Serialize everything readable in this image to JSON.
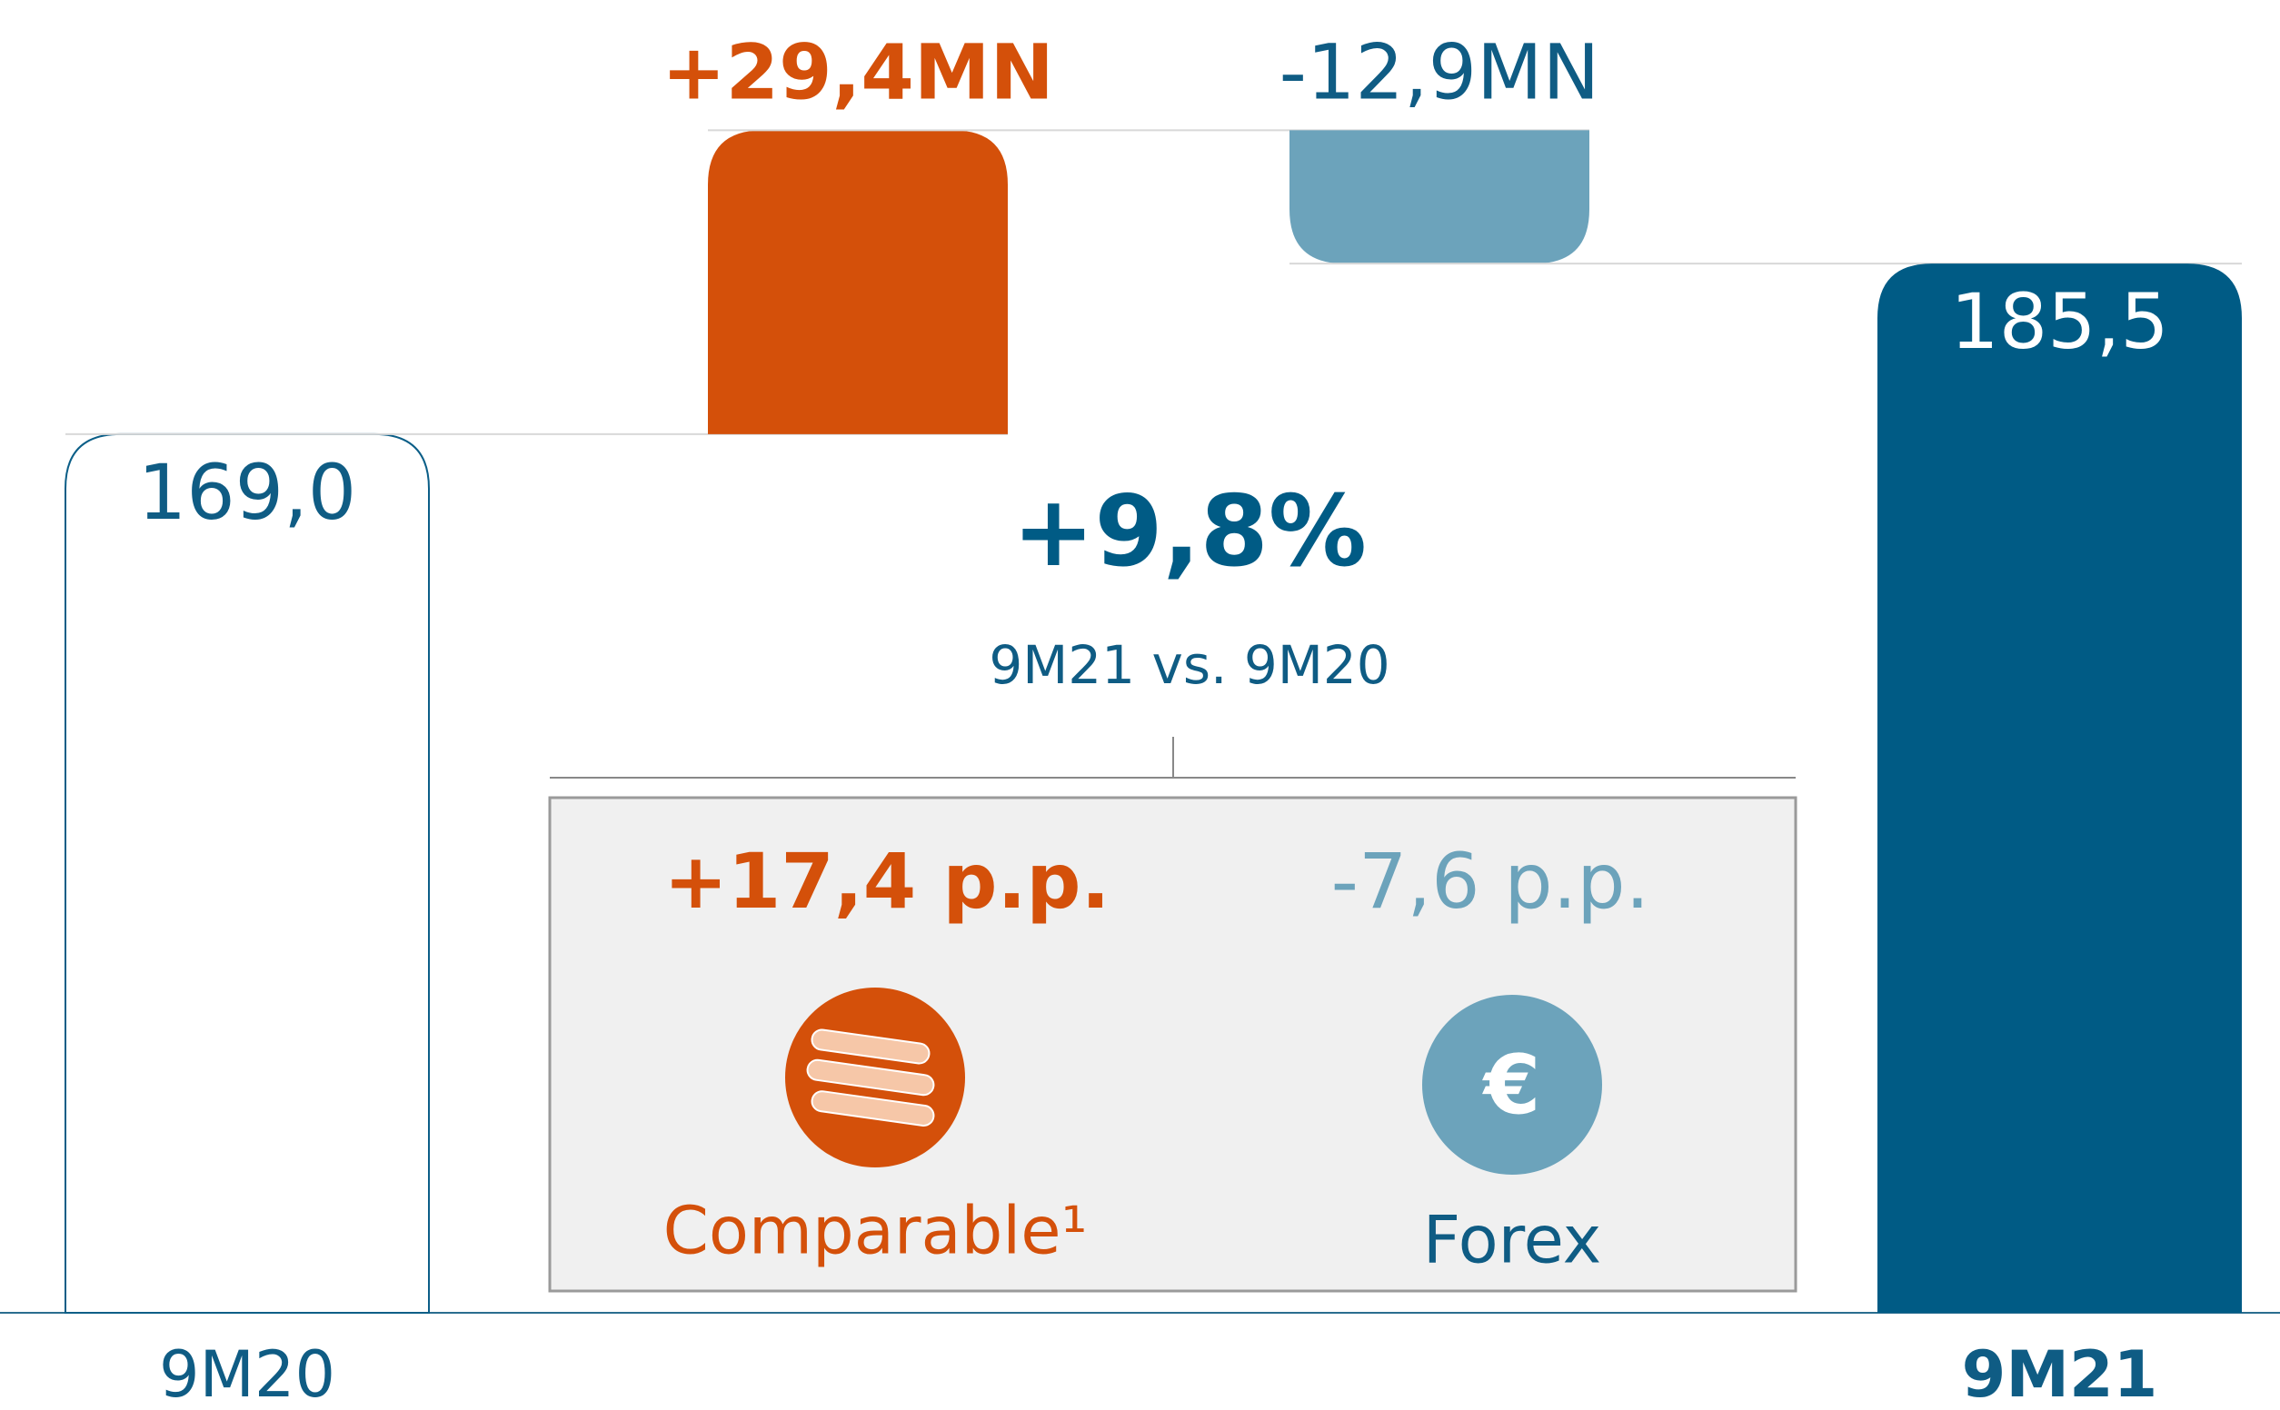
{
  "chart_data": {
    "type": "waterfall",
    "categories": [
      "9M20",
      null,
      null,
      "9M21"
    ],
    "values": [
      169.0,
      29.4,
      -12.9,
      185.5
    ],
    "value_labels": [
      "169,0",
      "+29,4MN",
      "-12,9MN",
      "185,5"
    ],
    "colors": [
      "#ffffff",
      "#d4500a",
      "#6ca3bb",
      "#005b85"
    ],
    "ylim": [
      84,
      211
    ],
    "headline": "+9,8%",
    "headline_subtitle": "9M21 vs. 9M20",
    "breakdown": [
      {
        "value_label": "+17,4 p.p.",
        "label": "Comparable¹",
        "color": "#d4500a"
      },
      {
        "value_label": "-7,6 p.p.",
        "label": "Forex",
        "icon": "€",
        "color": "#6ca3bb"
      }
    ]
  }
}
